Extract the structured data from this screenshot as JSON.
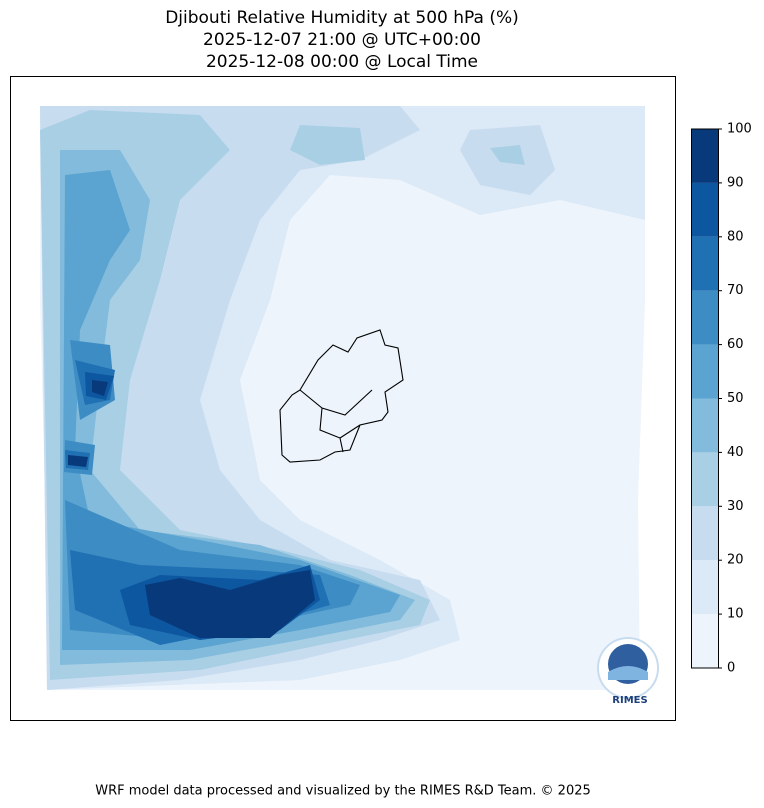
{
  "title": [
    "Djibouti Relative Humidity at 500 hPa (%)",
    "2025-12-07 21:00 @ UTC+00:00",
    "2025-12-08 00:00 @ Local Time"
  ],
  "colorbar": {
    "levels": [
      0,
      10,
      20,
      30,
      40,
      50,
      60,
      70,
      80,
      90,
      100
    ],
    "colors": [
      "#edf4fc",
      "#dce9f6",
      "#c8dcf0",
      "#a9cfe5",
      "#82bbdb",
      "#5ba3d0",
      "#3d8dc4",
      "#2070b4",
      "#0d56a0",
      "#08397a"
    ]
  },
  "logo": "RIMES",
  "footer": "WRF model data processed and visualized by the RIMES R&D Team. © 2025"
}
